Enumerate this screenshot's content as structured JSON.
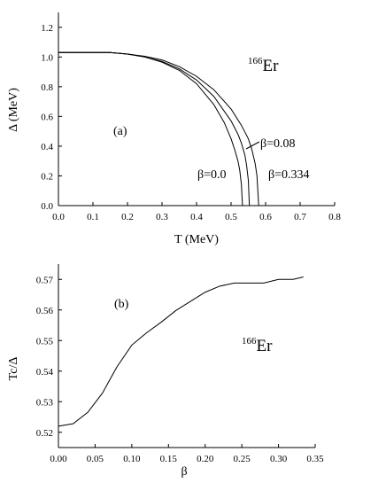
{
  "chart_data": [
    {
      "id": "a",
      "type": "line",
      "panel_label": "(a)",
      "nucleus_mass": "166",
      "nucleus_symbol": "Er",
      "xlabel": "T (MeV)",
      "ylabel": "Δ (MeV)",
      "xlim": [
        0,
        0.8
      ],
      "ylim": [
        0,
        1.3
      ],
      "xticks": [
        0.0,
        0.1,
        0.2,
        0.3,
        0.4,
        0.5,
        0.6,
        0.7,
        0.8
      ],
      "xtick_labels": [
        "0.0",
        "0.1",
        "0.2",
        "0.3",
        "0.4",
        "0.5",
        "0.6",
        "0.7",
        "0.8"
      ],
      "yticks": [
        0.0,
        0.2,
        0.4,
        0.6,
        0.8,
        1.0,
        1.2
      ],
      "ytick_labels": [
        "0.0",
        "0.2",
        "0.4",
        "0.6",
        "0.8",
        "1.0",
        "1.2"
      ],
      "grid": false,
      "series": [
        {
          "label": "β=0.0",
          "x": [
            0.0,
            0.15,
            0.2,
            0.25,
            0.3,
            0.35,
            0.4,
            0.45,
            0.48,
            0.5,
            0.51,
            0.52,
            0.525,
            0.53,
            0.533
          ],
          "y": [
            1.03,
            1.03,
            1.02,
            1.0,
            0.965,
            0.91,
            0.82,
            0.68,
            0.56,
            0.45,
            0.38,
            0.3,
            0.24,
            0.14,
            0.0
          ]
        },
        {
          "label": "β=0.08",
          "x": [
            0.0,
            0.15,
            0.2,
            0.25,
            0.3,
            0.35,
            0.4,
            0.45,
            0.5,
            0.52,
            0.53,
            0.54,
            0.545,
            0.55,
            0.553
          ],
          "y": [
            1.03,
            1.03,
            1.02,
            1.0,
            0.97,
            0.92,
            0.845,
            0.735,
            0.57,
            0.48,
            0.42,
            0.34,
            0.27,
            0.17,
            0.0
          ]
        },
        {
          "label": "β=0.334",
          "x": [
            0.0,
            0.15,
            0.2,
            0.25,
            0.3,
            0.35,
            0.4,
            0.45,
            0.5,
            0.53,
            0.55,
            0.56,
            0.57,
            0.575,
            0.58
          ],
          "y": [
            1.03,
            1.03,
            1.02,
            1.005,
            0.98,
            0.935,
            0.87,
            0.78,
            0.65,
            0.54,
            0.45,
            0.38,
            0.28,
            0.2,
            0.0
          ]
        }
      ]
    },
    {
      "id": "b",
      "type": "line",
      "panel_label": "(b)",
      "nucleus_mass": "166",
      "nucleus_symbol": "Er",
      "xlabel": "β",
      "ylabel": "Tc/Δ",
      "xlim": [
        0.0,
        0.35
      ],
      "ylim": [
        0.515,
        0.575
      ],
      "xticks": [
        0.0,
        0.05,
        0.1,
        0.15,
        0.2,
        0.25,
        0.3,
        0.35
      ],
      "xtick_labels": [
        "0.00",
        "0.05",
        "0.10",
        "0.15",
        "0.20",
        "0.25",
        "0.30",
        "0.35"
      ],
      "yticks": [
        0.52,
        0.53,
        0.54,
        0.55,
        0.56,
        0.57
      ],
      "ytick_labels": [
        "0.52",
        "0.53",
        "0.54",
        "0.55",
        "0.56",
        "0.57"
      ],
      "grid": false,
      "series": [
        {
          "x": [
            0.0,
            0.02,
            0.04,
            0.06,
            0.08,
            0.1,
            0.12,
            0.14,
            0.16,
            0.18,
            0.2,
            0.22,
            0.24,
            0.26,
            0.28,
            0.3,
            0.32,
            0.334
          ],
          "y": [
            0.522,
            0.5228,
            0.5265,
            0.5328,
            0.5415,
            0.5485,
            0.5525,
            0.556,
            0.5598,
            0.5628,
            0.5658,
            0.5678,
            0.5688,
            0.5688,
            0.5688,
            0.57,
            0.57,
            0.5708
          ]
        }
      ]
    }
  ]
}
